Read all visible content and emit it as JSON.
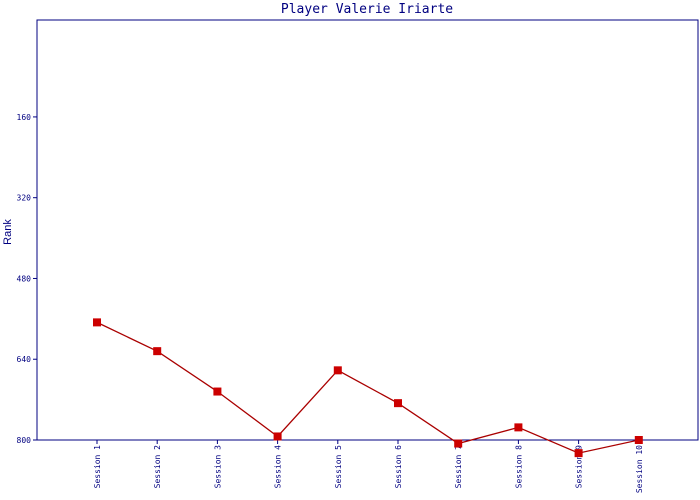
{
  "chart_data": {
    "type": "line",
    "title": "Player Valerie Iriarte",
    "xlabel": "",
    "ylabel": "Rank",
    "categories": [
      "Session 1",
      "Session 2",
      "Session 3",
      "Session 4",
      "Session 5",
      "Session 6",
      "Session 7",
      "Session 8",
      "Session 9",
      "Session 10"
    ],
    "series": [
      {
        "values": [
          567,
          624,
          704,
          793,
          662,
          727,
          807,
          775,
          826,
          800
        ]
      }
    ],
    "y_ticks": [
      160,
      320,
      480,
      640,
      800
    ],
    "ylim": [
      800,
      -32
    ],
    "y_inverted": true,
    "grid": false,
    "colors": {
      "axis": "#000080",
      "line": "#aa0000",
      "marker": "#cc0000",
      "background": "#ffffff"
    }
  }
}
